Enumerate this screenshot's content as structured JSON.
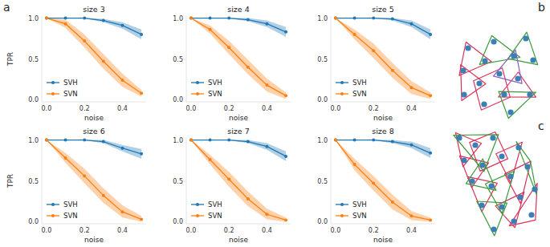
{
  "panel_labels": [
    "a",
    "b",
    "c"
  ],
  "chart_data": [
    {
      "type": "line",
      "title": "size 3",
      "x_label": "noise",
      "y_label": "TPR",
      "x": [
        0,
        0.1,
        0.2,
        0.3,
        0.4,
        0.5
      ],
      "xlim": [
        -0.025,
        0.525
      ],
      "ylim": [
        -0.025,
        1.025
      ],
      "xticks": [
        {
          "value": 0,
          "label": "0.0"
        },
        {
          "value": 0.2,
          "label": "0.2"
        },
        {
          "value": 0.4,
          "label": "0.4"
        }
      ],
      "yticks": [
        {
          "value": 0,
          "label": "0.0"
        },
        {
          "value": 0.5,
          "label": "0.5"
        },
        {
          "value": 1,
          "label": "1.0"
        }
      ],
      "grid": false,
      "legend": "lower left",
      "series": [
        {
          "name": "SVH",
          "color": "#1f77b4",
          "marker": "o",
          "values": [
            1,
            1,
            1,
            0.97,
            0.91,
            0.8
          ],
          "lower": [
            1,
            1,
            0.995,
            0.95,
            0.87,
            0.74
          ],
          "upper": [
            1,
            1,
            1,
            0.99,
            0.95,
            0.86
          ]
        },
        {
          "name": "SVN",
          "color": "#ff7f0e",
          "marker": "o",
          "values": [
            1,
            0.93,
            0.72,
            0.47,
            0.24,
            0.08
          ],
          "lower": [
            1,
            0.88,
            0.64,
            0.38,
            0.16,
            0.04
          ],
          "upper": [
            1,
            0.98,
            0.8,
            0.56,
            0.32,
            0.12
          ]
        }
      ]
    },
    {
      "type": "line",
      "title": "size 4",
      "x_label": "noise",
      "x": [
        0,
        0.1,
        0.2,
        0.3,
        0.4,
        0.5
      ],
      "xlim": [
        -0.025,
        0.525
      ],
      "ylim": [
        -0.025,
        1.025
      ],
      "xticks": [
        {
          "value": 0,
          "label": "0.0"
        },
        {
          "value": 0.2,
          "label": "0.2"
        },
        {
          "value": 0.4,
          "label": "0.4"
        }
      ],
      "yticks": [
        {
          "value": 0,
          "label": "0.0"
        },
        {
          "value": 0.5,
          "label": "0.5"
        },
        {
          "value": 1,
          "label": "1.0"
        }
      ],
      "grid": false,
      "legend": "lower left",
      "series": [
        {
          "name": "SVH",
          "color": "#1f77b4",
          "marker": "o",
          "values": [
            1,
            1,
            1,
            0.98,
            0.93,
            0.83
          ],
          "lower": [
            1,
            1,
            0.995,
            0.96,
            0.89,
            0.77
          ],
          "upper": [
            1,
            1,
            1,
            1,
            0.97,
            0.89
          ]
        },
        {
          "name": "SVN",
          "color": "#ff7f0e",
          "marker": "o",
          "values": [
            1,
            0.86,
            0.64,
            0.4,
            0.18,
            0.05
          ],
          "lower": [
            1,
            0.81,
            0.56,
            0.31,
            0.1,
            0.01
          ],
          "upper": [
            1,
            0.91,
            0.72,
            0.49,
            0.26,
            0.09
          ]
        }
      ]
    },
    {
      "type": "line",
      "title": "size 5",
      "x_label": "noise",
      "x": [
        0,
        0.1,
        0.2,
        0.3,
        0.4,
        0.5
      ],
      "xlim": [
        -0.025,
        0.525
      ],
      "ylim": [
        -0.025,
        1.025
      ],
      "xticks": [
        {
          "value": 0,
          "label": "0.0"
        },
        {
          "value": 0.2,
          "label": "0.2"
        },
        {
          "value": 0.4,
          "label": "0.4"
        }
      ],
      "yticks": [
        {
          "value": 0,
          "label": "0.0"
        },
        {
          "value": 0.5,
          "label": "0.5"
        },
        {
          "value": 1,
          "label": "1.0"
        }
      ],
      "grid": false,
      "legend": "lower left",
      "series": [
        {
          "name": "SVH",
          "color": "#1f77b4",
          "marker": "o",
          "values": [
            1,
            1,
            1,
            0.99,
            0.93,
            0.8
          ],
          "lower": [
            1,
            1,
            0.995,
            0.97,
            0.89,
            0.74
          ],
          "upper": [
            1,
            1,
            1,
            1,
            0.97,
            0.86
          ]
        },
        {
          "name": "SVN",
          "color": "#ff7f0e",
          "marker": "o",
          "values": [
            1,
            0.8,
            0.6,
            0.36,
            0.15,
            0.05
          ],
          "lower": [
            1,
            0.74,
            0.51,
            0.27,
            0.07,
            0.01
          ],
          "upper": [
            1,
            0.86,
            0.69,
            0.45,
            0.23,
            0.09
          ]
        }
      ]
    },
    {
      "type": "line",
      "title": "size 6",
      "x_label": "noise",
      "y_label": "TPR",
      "x": [
        0,
        0.1,
        0.2,
        0.3,
        0.4,
        0.5
      ],
      "xlim": [
        -0.025,
        0.525
      ],
      "ylim": [
        -0.025,
        1.025
      ],
      "xticks": [
        {
          "value": 0,
          "label": "0.0"
        },
        {
          "value": 0.2,
          "label": "0.2"
        },
        {
          "value": 0.4,
          "label": "0.4"
        }
      ],
      "yticks": [
        {
          "value": 0,
          "label": "0.0"
        },
        {
          "value": 0.5,
          "label": "0.5"
        },
        {
          "value": 1,
          "label": "1.0"
        }
      ],
      "grid": false,
      "legend": "lower left",
      "series": [
        {
          "name": "SVH",
          "color": "#1f77b4",
          "marker": "o",
          "values": [
            1,
            1,
            1,
            0.98,
            0.9,
            0.83
          ],
          "lower": [
            1,
            1,
            0.995,
            0.96,
            0.86,
            0.77
          ],
          "upper": [
            1,
            1,
            1,
            1,
            0.94,
            0.89
          ]
        },
        {
          "name": "SVN",
          "color": "#ff7f0e",
          "marker": "o",
          "values": [
            1,
            0.78,
            0.56,
            0.32,
            0.12,
            0.03
          ],
          "lower": [
            1,
            0.72,
            0.47,
            0.23,
            0.05,
            0
          ],
          "upper": [
            1,
            0.84,
            0.65,
            0.41,
            0.2,
            0.07
          ]
        }
      ]
    },
    {
      "type": "line",
      "title": "size 7",
      "x_label": "noise",
      "x": [
        0,
        0.1,
        0.2,
        0.3,
        0.4,
        0.5
      ],
      "xlim": [
        -0.025,
        0.525
      ],
      "ylim": [
        -0.025,
        1.025
      ],
      "xticks": [
        {
          "value": 0,
          "label": "0.0"
        },
        {
          "value": 0.2,
          "label": "0.2"
        },
        {
          "value": 0.4,
          "label": "0.4"
        }
      ],
      "yticks": [
        {
          "value": 0,
          "label": "0.0"
        },
        {
          "value": 0.5,
          "label": "0.5"
        },
        {
          "value": 1,
          "label": "1.0"
        }
      ],
      "grid": false,
      "legend": "lower left",
      "series": [
        {
          "name": "SVH",
          "color": "#1f77b4",
          "marker": "o",
          "values": [
            1,
            1,
            1,
            0.98,
            0.92,
            0.8
          ],
          "lower": [
            1,
            1,
            0.995,
            0.96,
            0.88,
            0.74
          ],
          "upper": [
            1,
            1,
            1,
            1,
            0.96,
            0.86
          ]
        },
        {
          "name": "SVN",
          "color": "#ff7f0e",
          "marker": "o",
          "values": [
            1,
            0.76,
            0.52,
            0.28,
            0.09,
            0.02
          ],
          "lower": [
            1,
            0.7,
            0.43,
            0.19,
            0.03,
            0
          ],
          "upper": [
            1,
            0.82,
            0.61,
            0.37,
            0.16,
            0.05
          ]
        }
      ]
    },
    {
      "type": "line",
      "title": "size 8",
      "x_label": "noise",
      "x": [
        0,
        0.1,
        0.2,
        0.3,
        0.4,
        0.5
      ],
      "xlim": [
        -0.025,
        0.525
      ],
      "ylim": [
        -0.025,
        1.025
      ],
      "xticks": [
        {
          "value": 0,
          "label": "0.0"
        },
        {
          "value": 0.2,
          "label": "0.2"
        },
        {
          "value": 0.4,
          "label": "0.4"
        }
      ],
      "yticks": [
        {
          "value": 0,
          "label": "0.0"
        },
        {
          "value": 0.5,
          "label": "0.5"
        },
        {
          "value": 1,
          "label": "1.0"
        }
      ],
      "grid": false,
      "legend": "lower left",
      "series": [
        {
          "name": "SVH",
          "color": "#1f77b4",
          "marker": "o",
          "values": [
            1,
            1,
            1,
            0.98,
            0.94,
            0.84
          ],
          "lower": [
            1,
            1,
            0.995,
            0.96,
            0.9,
            0.78
          ],
          "upper": [
            1,
            1,
            1,
            1,
            0.98,
            0.9
          ]
        },
        {
          "name": "SVN",
          "color": "#ff7f0e",
          "marker": "o",
          "values": [
            1,
            0.7,
            0.47,
            0.24,
            0.07,
            0.02
          ],
          "lower": [
            1,
            0.63,
            0.38,
            0.15,
            0.02,
            0
          ],
          "upper": [
            1,
            0.77,
            0.56,
            0.33,
            0.13,
            0.05
          ]
        }
      ]
    }
  ]
}
